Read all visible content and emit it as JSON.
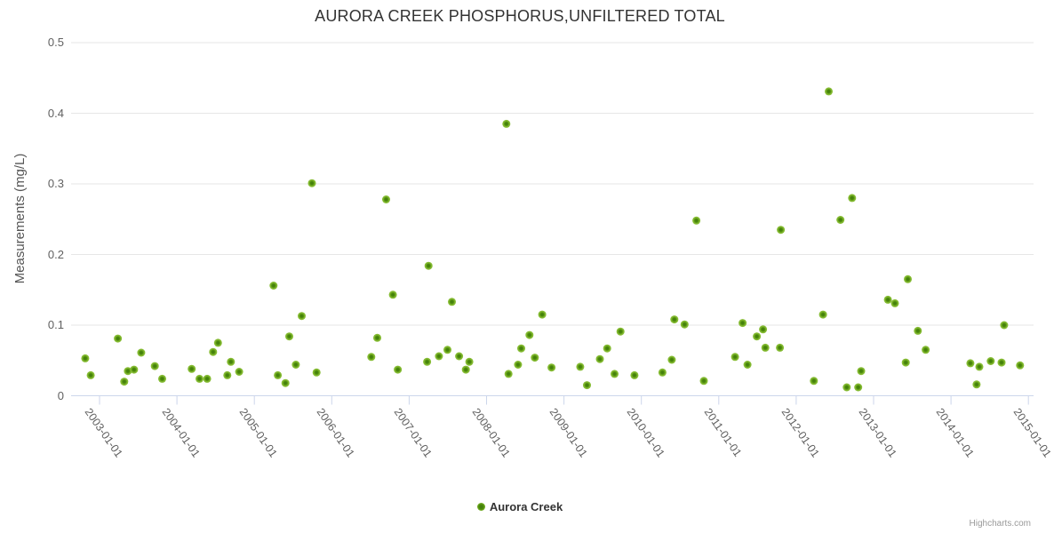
{
  "title": "AURORA CREEK PHOSPHORUS,UNFILTERED TOTAL",
  "y_axis": {
    "title": "Measurements (mg/L)",
    "tick_labels": [
      "0",
      "0.1",
      "0.2",
      "0.3",
      "0.4",
      "0.5"
    ],
    "tick_values": [
      0,
      0.1,
      0.2,
      0.3,
      0.4,
      0.5
    ]
  },
  "x_axis": {
    "tick_labels": [
      "2003-01-01",
      "2004-01-01",
      "2005-01-01",
      "2006-01-01",
      "2007-01-01",
      "2008-01-01",
      "2009-01-01",
      "2010-01-01",
      "2011-01-01",
      "2012-01-01",
      "2013-01-01",
      "2014-01-01",
      "2015-01-01"
    ]
  },
  "legend": {
    "series_label": "Aurora Creek"
  },
  "credits": {
    "label": "Highcharts.com"
  },
  "colors": {
    "marker_outer": "#86BC33",
    "marker_mid": "#4C8A0A",
    "marker_core": "#3E7A0E",
    "grid": "#e6e6e6",
    "axis": "#ccd6eb",
    "tick_label": "#606060",
    "title": "#333333",
    "credits": "#999999"
  },
  "chart_data": {
    "type": "scatter",
    "title": "AURORA CREEK PHOSPHORUS,UNFILTERED TOTAL",
    "xlabel": "",
    "ylabel": "Measurements (mg/L)",
    "ylim": [
      0,
      0.5
    ],
    "x_range": [
      "2002-08-01",
      "2015-01-01"
    ],
    "grid": "horizontal-only",
    "legend_position": "bottom-center",
    "series": [
      {
        "name": "Aurora Creek",
        "points": [
          [
            "2002-10-25",
            0.053
          ],
          [
            "2002-11-20",
            0.029
          ],
          [
            "2003-03-28",
            0.081
          ],
          [
            "2003-04-27",
            0.02
          ],
          [
            "2003-05-14",
            0.035
          ],
          [
            "2003-06-12",
            0.037
          ],
          [
            "2003-07-16",
            0.061
          ],
          [
            "2003-09-18",
            0.042
          ],
          [
            "2003-10-23",
            0.024
          ],
          [
            "2004-03-11",
            0.038
          ],
          [
            "2004-04-17",
            0.024
          ],
          [
            "2004-05-23",
            0.024
          ],
          [
            "2004-06-20",
            0.062
          ],
          [
            "2004-07-13",
            0.075
          ],
          [
            "2004-08-26",
            0.029
          ],
          [
            "2004-09-12",
            0.048
          ],
          [
            "2004-10-21",
            0.034
          ],
          [
            "2005-04-01",
            0.156
          ],
          [
            "2005-04-21",
            0.029
          ],
          [
            "2005-05-27",
            0.018
          ],
          [
            "2005-06-14",
            0.084
          ],
          [
            "2005-07-15",
            0.044
          ],
          [
            "2005-08-12",
            0.113
          ],
          [
            "2005-09-29",
            0.301
          ],
          [
            "2005-10-21",
            0.033
          ],
          [
            "2006-07-06",
            0.055
          ],
          [
            "2006-08-03",
            0.082
          ],
          [
            "2006-09-14",
            0.278
          ],
          [
            "2006-10-16",
            0.143
          ],
          [
            "2006-11-08",
            0.037
          ],
          [
            "2007-03-26",
            0.048
          ],
          [
            "2007-04-02",
            0.184
          ],
          [
            "2007-05-21",
            0.056
          ],
          [
            "2007-06-30",
            0.065
          ],
          [
            "2007-07-21",
            0.133
          ],
          [
            "2007-08-24",
            0.056
          ],
          [
            "2007-09-25",
            0.037
          ],
          [
            "2007-10-11",
            0.048
          ],
          [
            "2008-04-04",
            0.385
          ],
          [
            "2008-04-14",
            0.031
          ],
          [
            "2008-05-29",
            0.044
          ],
          [
            "2008-06-13",
            0.067
          ],
          [
            "2008-07-22",
            0.086
          ],
          [
            "2008-08-16",
            0.054
          ],
          [
            "2008-09-20",
            0.115
          ],
          [
            "2008-11-03",
            0.04
          ],
          [
            "2009-03-18",
            0.041
          ],
          [
            "2009-04-19",
            0.015
          ],
          [
            "2009-06-19",
            0.052
          ],
          [
            "2009-07-23",
            0.067
          ],
          [
            "2009-08-27",
            0.031
          ],
          [
            "2009-09-24",
            0.091
          ],
          [
            "2009-11-29",
            0.029
          ],
          [
            "2010-04-10",
            0.033
          ],
          [
            "2010-05-24",
            0.051
          ],
          [
            "2010-06-05",
            0.108
          ],
          [
            "2010-07-23",
            0.101
          ],
          [
            "2010-09-17",
            0.248
          ],
          [
            "2010-10-22",
            0.021
          ],
          [
            "2011-03-18",
            0.055
          ],
          [
            "2011-04-23",
            0.103
          ],
          [
            "2011-05-16",
            0.044
          ],
          [
            "2011-06-29",
            0.084
          ],
          [
            "2011-07-28",
            0.094
          ],
          [
            "2011-08-08",
            0.068
          ],
          [
            "2011-10-16",
            0.068
          ],
          [
            "2011-10-20",
            0.235
          ],
          [
            "2012-03-25",
            0.021
          ],
          [
            "2012-05-07",
            0.115
          ],
          [
            "2012-06-03",
            0.431
          ],
          [
            "2012-07-28",
            0.249
          ],
          [
            "2012-08-27",
            0.012
          ],
          [
            "2012-09-21",
            0.28
          ],
          [
            "2012-10-20",
            0.012
          ],
          [
            "2012-11-03",
            0.035
          ],
          [
            "2013-03-09",
            0.136
          ],
          [
            "2013-04-11",
            0.131
          ],
          [
            "2013-06-01",
            0.047
          ],
          [
            "2013-06-11",
            0.165
          ],
          [
            "2013-07-28",
            0.092
          ],
          [
            "2013-09-03",
            0.065
          ],
          [
            "2014-04-02",
            0.046
          ],
          [
            "2014-05-01",
            0.016
          ],
          [
            "2014-05-14",
            0.041
          ],
          [
            "2014-07-07",
            0.049
          ],
          [
            "2014-08-27",
            0.047
          ],
          [
            "2014-09-08",
            0.1
          ],
          [
            "2014-11-22",
            0.043
          ]
        ]
      }
    ]
  }
}
